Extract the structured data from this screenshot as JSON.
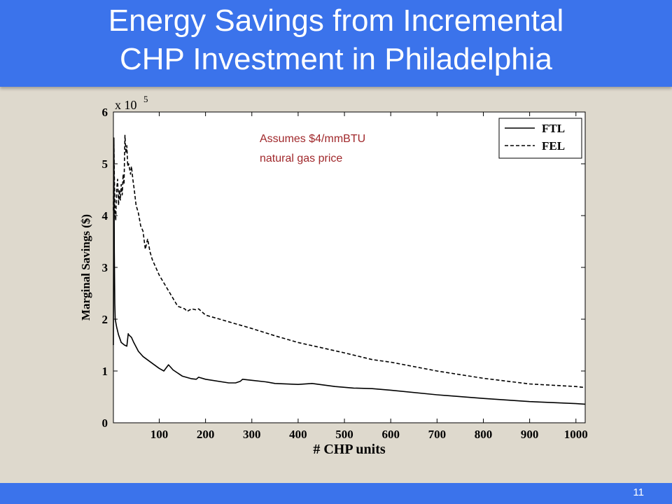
{
  "slide": {
    "title_line1": "Energy Savings from Incremental",
    "title_line2": "CHP Investment in Philadelphia",
    "page_number": "11",
    "colors": {
      "title_bar": "#3b73eb",
      "background": "#ded9cd",
      "annotation": "#a0282b"
    }
  },
  "chart_data": {
    "type": "line",
    "xlabel": "# CHP units",
    "ylabel": "Marginal Savings ($)",
    "y_multiplier": "x 10^5",
    "xlim": [
      1,
      1020
    ],
    "ylim": [
      0,
      6
    ],
    "xticks": [
      100,
      200,
      300,
      400,
      500,
      600,
      700,
      800,
      900,
      1000
    ],
    "yticks": [
      0,
      1,
      2,
      3,
      4,
      5,
      6
    ],
    "grid": false,
    "legend_position": "top-right",
    "annotation": [
      "Assumes $4/mmBTU",
      "natural gas price"
    ],
    "series": [
      {
        "name": "FTL",
        "style": "solid",
        "x": [
          1,
          2,
          3,
          4,
          5,
          8,
          12,
          18,
          25,
          30,
          33,
          34,
          40,
          45,
          55,
          65,
          80,
          100,
          110,
          120,
          130,
          150,
          170,
          180,
          185,
          200,
          250,
          265,
          275,
          280,
          300,
          330,
          350,
          400,
          430,
          480,
          520,
          560,
          600,
          700,
          800,
          900,
          1000,
          1020
        ],
        "y": [
          1.5,
          5.5,
          3.3,
          2.3,
          2.0,
          1.85,
          1.7,
          1.55,
          1.5,
          1.48,
          1.72,
          1.7,
          1.65,
          1.55,
          1.38,
          1.28,
          1.18,
          1.05,
          1.0,
          1.12,
          1.02,
          0.9,
          0.85,
          0.84,
          0.88,
          0.84,
          0.77,
          0.77,
          0.8,
          0.84,
          0.82,
          0.79,
          0.76,
          0.74,
          0.76,
          0.7,
          0.67,
          0.66,
          0.63,
          0.54,
          0.47,
          0.41,
          0.37,
          0.36
        ]
      },
      {
        "name": "FEL",
        "style": "dashed",
        "x": [
          1,
          2,
          3,
          4,
          6,
          8,
          10,
          12,
          14,
          16,
          18,
          20,
          22,
          24,
          26,
          28,
          30,
          32,
          34,
          36,
          38,
          40,
          43,
          46,
          50,
          55,
          60,
          65,
          70,
          75,
          80,
          85,
          90,
          100,
          120,
          140,
          155,
          160,
          170,
          180,
          185,
          195,
          200,
          250,
          300,
          350,
          400,
          450,
          500,
          560,
          600,
          700,
          800,
          900,
          1000,
          1020
        ],
        "y": [
          4.1,
          5.4,
          4.8,
          4.2,
          3.9,
          4.5,
          4.7,
          4.2,
          4.5,
          4.3,
          4.6,
          4.4,
          4.8,
          4.6,
          5.55,
          5.2,
          5.35,
          4.95,
          5.0,
          4.9,
          4.8,
          4.95,
          4.7,
          4.5,
          4.2,
          4.05,
          3.8,
          3.7,
          3.35,
          3.55,
          3.3,
          3.15,
          3.05,
          2.85,
          2.55,
          2.25,
          2.2,
          2.15,
          2.2,
          2.18,
          2.2,
          2.12,
          2.08,
          1.95,
          1.82,
          1.68,
          1.55,
          1.45,
          1.35,
          1.22,
          1.17,
          1.0,
          0.86,
          0.75,
          0.7,
          0.68
        ]
      }
    ]
  }
}
